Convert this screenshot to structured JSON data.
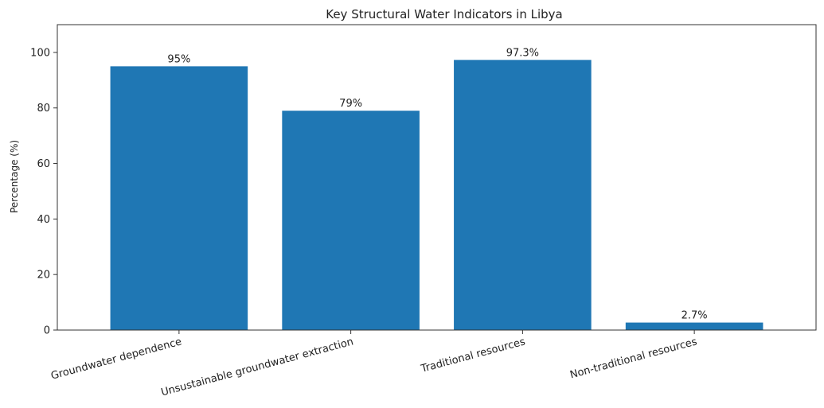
{
  "chart_data": {
    "type": "bar",
    "title": "Key Structural Water Indicators in Libya",
    "xlabel": "",
    "ylabel": "Percentage (%)",
    "ylim": [
      0,
      110
    ],
    "yticks": [
      0,
      20,
      40,
      60,
      80,
      100
    ],
    "grid": false,
    "categories": [
      "Groundwater dependence",
      "Unsustainable groundwater extraction",
      "Traditional resources",
      "Non-traditional resources"
    ],
    "values": [
      95,
      79,
      97.3,
      2.7
    ],
    "data_labels": [
      "95%",
      "79%",
      "97.3%",
      "2.7%"
    ],
    "bar_color": "#1f77b4"
  }
}
